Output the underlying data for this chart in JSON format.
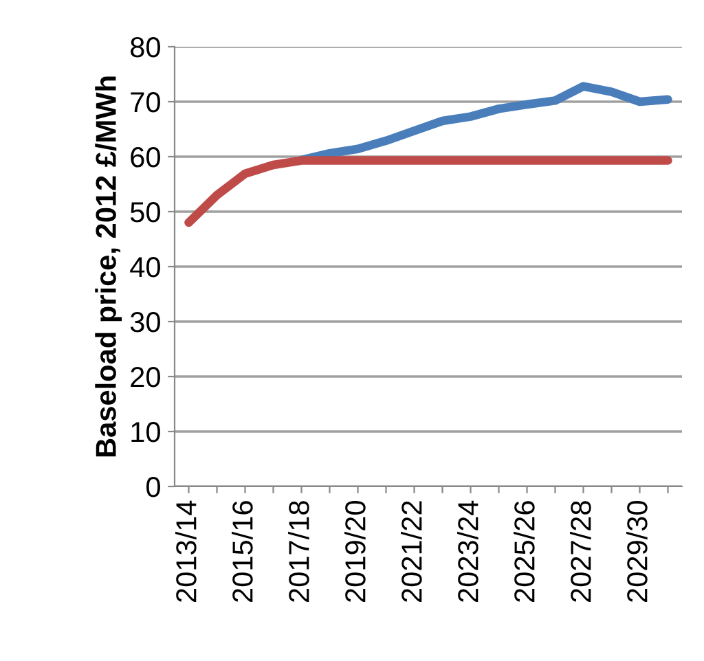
{
  "chart_data": {
    "type": "line",
    "ylabel": "Baseload price, 2012 £/MWh",
    "categories": [
      "2013/14",
      null,
      "2015/16",
      null,
      "2017/18",
      null,
      "2019/20",
      null,
      "2021/22",
      null,
      "2023/24",
      null,
      "2025/26",
      null,
      "2027/28",
      null,
      "2029/30",
      null
    ],
    "series": [
      {
        "color": "#4a7ebb",
        "values": [
          null,
          null,
          null,
          null,
          59.4,
          60.6,
          61.4,
          62.9,
          64.7,
          66.5,
          67.3,
          68.7,
          69.5,
          70.2,
          72.8,
          71.8,
          70,
          70.4
        ]
      },
      {
        "color": "#be4b48",
        "values": [
          48,
          53,
          56.9,
          58.5,
          59.3,
          59.3,
          59.3,
          59.3,
          59.3,
          59.3,
          59.3,
          59.3,
          59.3,
          59.3,
          59.3,
          59.3,
          59.3,
          59.3
        ]
      }
    ],
    "ylim": [
      0,
      80
    ],
    "yticks": [
      0,
      10,
      20,
      30,
      40,
      50,
      60,
      70,
      80
    ],
    "grid": "y",
    "legend": false,
    "marker": "none",
    "line_style": "solid"
  }
}
